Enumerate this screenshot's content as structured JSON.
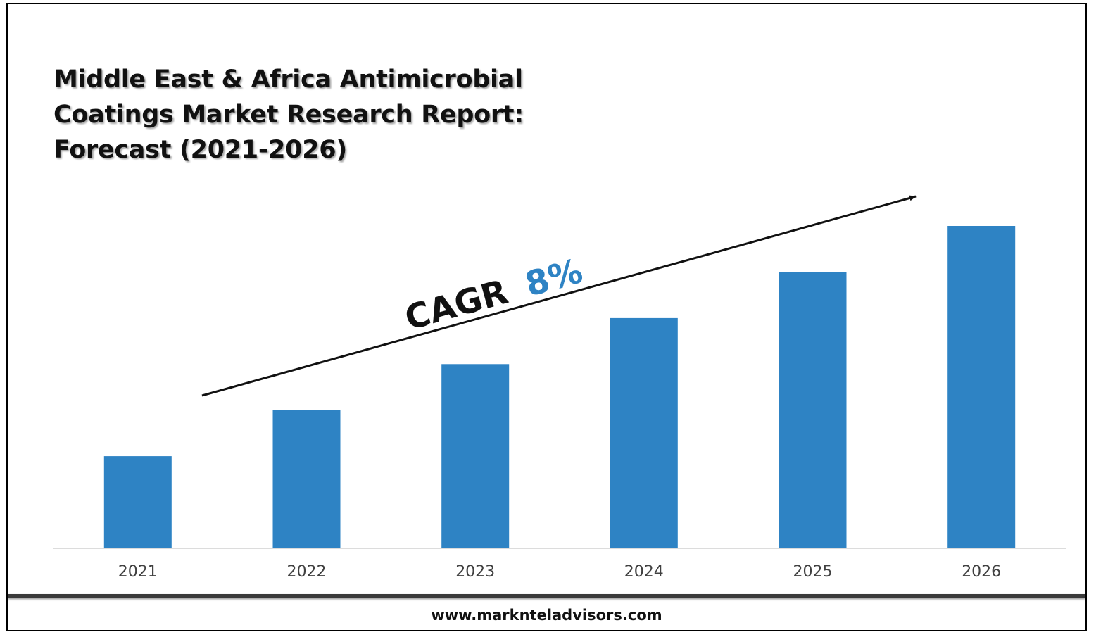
{
  "title_lines": [
    "Middle East & Africa Antimicrobial",
    "Coatings Market Research Report:",
    "Forecast (2021-2026)"
  ],
  "annotation": {
    "prefix": "CAGR",
    "value": "8%",
    "value_color": "#2E83C4"
  },
  "footer": {
    "website": "www.marknteladvisors.com"
  },
  "colors": {
    "bar": "#2E83C4",
    "axis": "#d0d0d0",
    "tick_label": "#404040"
  },
  "chart_data": {
    "type": "bar",
    "categories": [
      "2021",
      "2022",
      "2023",
      "2024",
      "2025",
      "2026"
    ],
    "values": [
      1.0,
      1.5,
      2.0,
      2.5,
      3.0,
      3.5
    ],
    "title": "Middle East & Africa Antimicrobial Coatings Market Research Report: Forecast (2021-2026)",
    "xlabel": "",
    "ylabel": "",
    "ylim": [
      0,
      3.5
    ],
    "grid": false,
    "legend": "none"
  }
}
